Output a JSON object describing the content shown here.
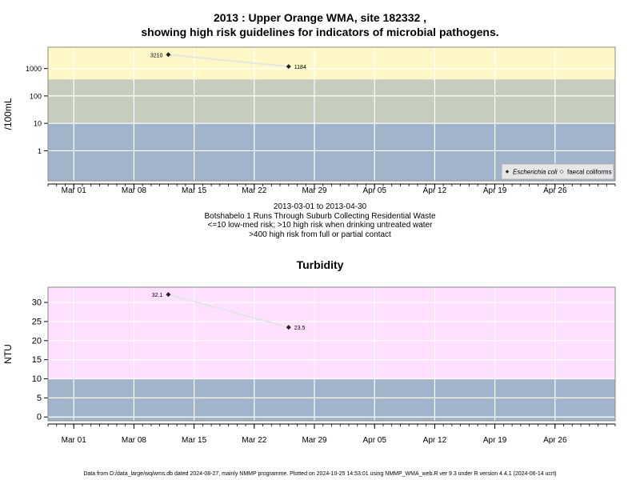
{
  "title_line1": "2013 : Upper Orange WMA, site 182332 ,",
  "title_line2": "showing high risk guidelines for indicators of microbial pathogens.",
  "captions": [
    "2013-03-01 to 2013-04-30",
    "Botshabelo 1 Runs Through Suburb Collecting Residential Waste",
    "<=10 low-med risk; >10 high risk when drinking untreated water",
    ">400 high risk from full or partial contact"
  ],
  "turbidity_title": "Turbidity",
  "footer": "Data from D:/data_large/wq/wms.db dated 2024-08-27, mainly NMMP programme. Plotted on 2024-10-25 14:53:01 using NMMP_WMA_web.R ver 9.3 under R version 4.4.1 (2024-06-14 ucrt)",
  "colors": {
    "low_band": "#a2b3cc",
    "mid_band": "#c5cdbd",
    "high_band_micro": "#fff8c6",
    "high_band_turb": "#ffe0ff",
    "grid": "#ffffff",
    "line": "#e5e5e5",
    "point": "#222222",
    "border": "#888888"
  },
  "chart_data": [
    {
      "type": "line",
      "panel": "microbial",
      "ylabel": "/100mL",
      "y_scale": "log",
      "xlim": [
        "2013-02-26",
        "2013-05-03"
      ],
      "x_ticks": [
        "Mar 01",
        "Mar 08",
        "Mar 15",
        "Mar 22",
        "Mar 29",
        "Apr 05",
        "Apr 12",
        "Apr 19",
        "Apr 26"
      ],
      "x_tick_dates": [
        "2013-03-01",
        "2013-03-08",
        "2013-03-15",
        "2013-03-22",
        "2013-03-29",
        "2013-04-05",
        "2013-04-12",
        "2013-04-19",
        "2013-04-26"
      ],
      "y_ticks": [
        "1",
        "10",
        "100",
        "1000"
      ],
      "y_tick_values": [
        1,
        10,
        100,
        1000
      ],
      "ylim": [
        0.08,
        6000
      ],
      "risk_bands": [
        10,
        400
      ],
      "legend": {
        "items": [
          "Escherichia coli",
          "faecal coliforms"
        ],
        "position": "bottom-right"
      },
      "series": [
        {
          "name": "Escherichia coli",
          "x": [
            "2013-03-12",
            "2013-03-26"
          ],
          "y": [
            3210,
            1184
          ],
          "labels": [
            "3210",
            "1184"
          ]
        }
      ]
    },
    {
      "type": "line",
      "panel": "turbidity",
      "ylabel": "NTU",
      "y_scale": "linear",
      "xlim": [
        "2013-02-26",
        "2013-05-03"
      ],
      "x_ticks": [
        "Mar 01",
        "Mar 08",
        "Mar 15",
        "Mar 22",
        "Mar 29",
        "Apr 05",
        "Apr 12",
        "Apr 19",
        "Apr 26"
      ],
      "x_tick_dates": [
        "2013-03-01",
        "2013-03-08",
        "2013-03-15",
        "2013-03-22",
        "2013-03-29",
        "2013-04-05",
        "2013-04-12",
        "2013-04-19",
        "2013-04-26"
      ],
      "y_ticks": [
        "0",
        "5",
        "10",
        "15",
        "20",
        "25",
        "30"
      ],
      "y_tick_values": [
        0,
        5,
        10,
        15,
        20,
        25,
        30
      ],
      "ylim": [
        -1,
        34
      ],
      "risk_bands": [
        10
      ],
      "series": [
        {
          "x": [
            "2013-03-12",
            "2013-03-26"
          ],
          "y": [
            32.1,
            23.5
          ],
          "labels": [
            "32.1",
            "23.5"
          ]
        }
      ]
    }
  ]
}
